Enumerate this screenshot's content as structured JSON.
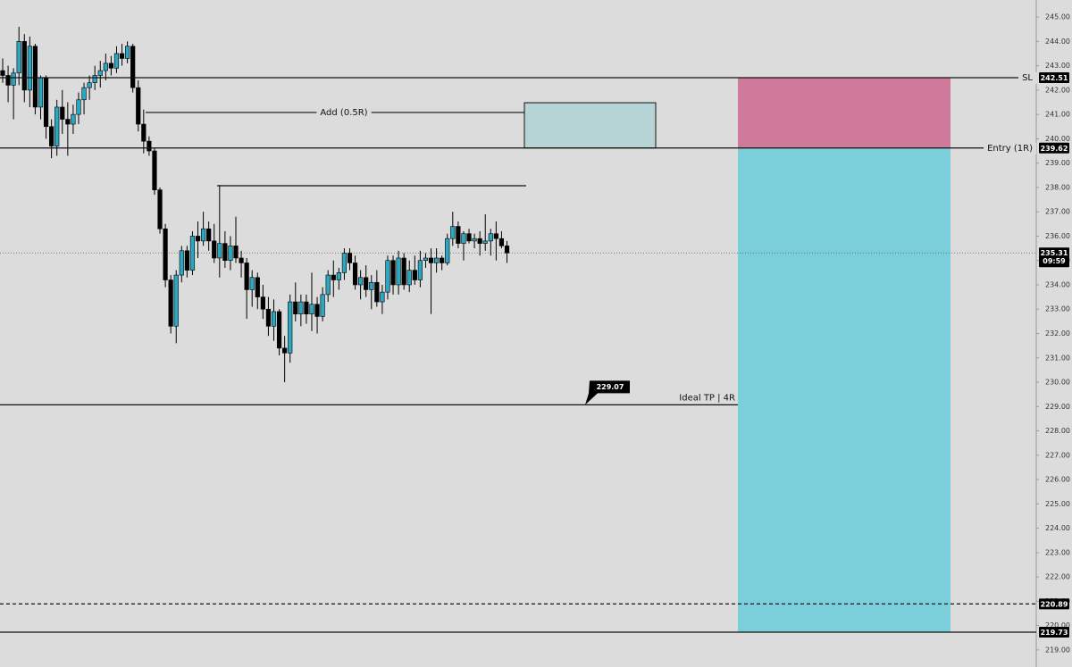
{
  "chart_data": {
    "type": "candlestick",
    "ylim": [
      218.3,
      245.7
    ],
    "yticks": [
      {
        "value": 219,
        "label": "219.00"
      },
      {
        "value": 220,
        "label": "220.00"
      },
      {
        "value": 221,
        "label": "221.00"
      },
      {
        "value": 222,
        "label": "222.00"
      },
      {
        "value": 223,
        "label": "223.00"
      },
      {
        "value": 224,
        "label": "224.00"
      },
      {
        "value": 225,
        "label": "225.00"
      },
      {
        "value": 226,
        "label": "226.00"
      },
      {
        "value": 227,
        "label": "227.00"
      },
      {
        "value": 228,
        "label": "228.00"
      },
      {
        "value": 229,
        "label": "229.00"
      },
      {
        "value": 230,
        "label": "230.00"
      },
      {
        "value": 231,
        "label": "231.00"
      },
      {
        "value": 232,
        "label": "232.00"
      },
      {
        "value": 233,
        "label": "233.00"
      },
      {
        "value": 234,
        "label": "234.00"
      },
      {
        "value": 235,
        "label": "235.00"
      },
      {
        "value": 236,
        "label": "236.00"
      },
      {
        "value": 237,
        "label": "237.00"
      },
      {
        "value": 238,
        "label": "238.00"
      },
      {
        "value": 239,
        "label": "239.00"
      },
      {
        "value": 240,
        "label": "240.00"
      },
      {
        "value": 241,
        "label": "241.00"
      },
      {
        "value": 242,
        "label": "242.00"
      },
      {
        "value": 243,
        "label": "243.00"
      },
      {
        "value": 244,
        "label": "244.00"
      },
      {
        "value": 245,
        "label": "245.00"
      }
    ],
    "up_color": "#2ba7c2",
    "down_color": "#000000",
    "ohlc": [
      [
        242.8,
        243.3,
        242.3,
        242.6
      ],
      [
        242.6,
        243.0,
        241.5,
        242.2
      ],
      [
        242.2,
        242.9,
        240.8,
        242.7
      ],
      [
        242.7,
        244.6,
        242.2,
        244.0
      ],
      [
        244.0,
        244.3,
        241.5,
        242.0
      ],
      [
        242.0,
        244.2,
        241.3,
        243.8
      ],
      [
        243.8,
        243.9,
        241.0,
        241.3
      ],
      [
        241.3,
        242.6,
        240.8,
        242.5
      ],
      [
        242.5,
        242.6,
        240.0,
        240.5
      ],
      [
        240.5,
        240.8,
        239.2,
        239.7
      ],
      [
        239.7,
        241.6,
        239.3,
        241.3
      ],
      [
        241.3,
        242.0,
        240.2,
        240.8
      ],
      [
        240.8,
        241.5,
        239.3,
        240.6
      ],
      [
        240.6,
        241.4,
        240.2,
        241.0
      ],
      [
        241.0,
        241.9,
        240.6,
        241.6
      ],
      [
        241.6,
        242.3,
        241.0,
        242.1
      ],
      [
        242.1,
        242.6,
        241.6,
        242.3
      ],
      [
        242.3,
        243.0,
        242.0,
        242.6
      ],
      [
        242.6,
        243.2,
        242.1,
        242.8
      ],
      [
        242.8,
        243.5,
        242.4,
        243.1
      ],
      [
        243.1,
        243.4,
        242.6,
        242.9
      ],
      [
        242.9,
        243.8,
        242.7,
        243.5
      ],
      [
        243.5,
        243.9,
        243.0,
        243.3
      ],
      [
        243.3,
        244.0,
        243.1,
        243.8
      ],
      [
        243.8,
        243.9,
        241.9,
        242.1
      ],
      [
        242.1,
        242.4,
        240.3,
        240.6
      ],
      [
        240.6,
        241.2,
        239.4,
        239.9
      ],
      [
        239.9,
        240.1,
        239.3,
        239.5
      ],
      [
        239.5,
        239.6,
        237.7,
        237.9
      ],
      [
        237.9,
        238.0,
        236.1,
        236.3
      ],
      [
        236.3,
        236.5,
        233.9,
        234.2
      ],
      [
        234.2,
        234.4,
        232.0,
        232.3
      ],
      [
        232.3,
        234.6,
        231.6,
        234.4
      ],
      [
        234.4,
        235.6,
        234.1,
        235.4
      ],
      [
        235.4,
        235.6,
        234.3,
        234.6
      ],
      [
        234.6,
        236.2,
        234.4,
        236.0
      ],
      [
        236.0,
        236.6,
        235.1,
        235.8
      ],
      [
        235.8,
        237.0,
        235.6,
        236.3
      ],
      [
        236.3,
        236.6,
        235.4,
        235.8
      ],
      [
        235.8,
        236.5,
        234.9,
        235.1
      ],
      [
        235.1,
        238.1,
        234.3,
        235.7
      ],
      [
        235.7,
        236.2,
        234.7,
        235.0
      ],
      [
        235.0,
        236.0,
        234.6,
        235.6
      ],
      [
        235.6,
        236.8,
        234.9,
        235.1
      ],
      [
        235.1,
        235.4,
        234.3,
        234.9
      ],
      [
        234.9,
        235.1,
        232.6,
        233.8
      ],
      [
        233.8,
        234.6,
        233.1,
        234.3
      ],
      [
        234.3,
        234.5,
        233.0,
        233.5
      ],
      [
        233.5,
        234.0,
        232.6,
        233.0
      ],
      [
        233.0,
        233.5,
        231.9,
        232.3
      ],
      [
        232.3,
        233.4,
        231.7,
        232.9
      ],
      [
        232.9,
        233.0,
        231.1,
        231.4
      ],
      [
        231.4,
        231.9,
        230.0,
        231.2
      ],
      [
        231.2,
        233.6,
        230.8,
        233.3
      ],
      [
        233.3,
        234.1,
        232.5,
        232.8
      ],
      [
        232.8,
        233.6,
        232.3,
        233.3
      ],
      [
        233.3,
        233.6,
        232.4,
        232.8
      ],
      [
        232.8,
        234.5,
        232.1,
        233.2
      ],
      [
        233.2,
        233.5,
        232.0,
        232.7
      ],
      [
        232.7,
        233.9,
        232.5,
        233.6
      ],
      [
        233.6,
        234.6,
        233.3,
        234.4
      ],
      [
        234.4,
        235.0,
        233.5,
        234.2
      ],
      [
        234.2,
        234.7,
        233.8,
        234.5
      ],
      [
        234.5,
        235.5,
        234.2,
        235.3
      ],
      [
        235.3,
        235.5,
        234.6,
        234.9
      ],
      [
        234.9,
        235.2,
        233.8,
        234.0
      ],
      [
        234.0,
        234.6,
        233.4,
        234.3
      ],
      [
        234.3,
        234.8,
        233.5,
        233.8
      ],
      [
        233.8,
        234.4,
        233.0,
        234.1
      ],
      [
        234.1,
        234.6,
        233.1,
        233.3
      ],
      [
        233.3,
        234.0,
        232.8,
        233.7
      ],
      [
        233.7,
        235.2,
        233.4,
        235.0
      ],
      [
        235.0,
        235.2,
        233.6,
        234.0
      ],
      [
        234.0,
        235.4,
        233.6,
        235.1
      ],
      [
        235.1,
        235.3,
        233.8,
        234.0
      ],
      [
        234.0,
        235.0,
        233.7,
        234.6
      ],
      [
        234.6,
        235.2,
        234.0,
        234.2
      ],
      [
        234.2,
        235.4,
        233.9,
        235.0
      ],
      [
        235.0,
        235.3,
        234.7,
        235.1
      ],
      [
        235.1,
        235.5,
        232.8,
        234.9
      ],
      [
        234.9,
        235.5,
        234.5,
        235.1
      ],
      [
        235.1,
        235.2,
        234.6,
        234.9
      ],
      [
        234.9,
        236.1,
        234.8,
        235.9
      ],
      [
        235.9,
        237.0,
        235.6,
        236.4
      ],
      [
        236.4,
        236.6,
        235.5,
        235.7
      ],
      [
        235.7,
        236.2,
        235.0,
        236.1
      ],
      [
        236.1,
        236.3,
        235.7,
        235.8
      ],
      [
        235.8,
        236.1,
        235.5,
        235.9
      ],
      [
        235.9,
        236.2,
        235.2,
        235.7
      ],
      [
        235.7,
        236.9,
        235.4,
        235.8
      ],
      [
        235.8,
        236.3,
        235.2,
        236.1
      ],
      [
        236.1,
        236.6,
        235.0,
        235.9
      ],
      [
        235.9,
        236.2,
        235.5,
        235.6
      ],
      [
        235.6,
        235.8,
        234.9,
        235.31
      ]
    ],
    "levels": [
      {
        "label": "SL",
        "value": 242.51,
        "badge": true
      },
      {
        "label": "Entry (1R)",
        "value": 239.62,
        "badge": true
      },
      {
        "label": "Ideal TP | 4R",
        "value": 229.07,
        "callout": true
      },
      {
        "value": 220.89,
        "badge": true,
        "dashed": true
      },
      {
        "value": 219.73,
        "badge": true
      },
      {
        "label": "Add (0.5R)",
        "value": 241.08
      },
      {
        "value": 238.07
      }
    ],
    "current_price": {
      "value": 235.31,
      "countdown": "09:59"
    },
    "add_box": {
      "top": 241.48,
      "color": "#b6d3d6"
    },
    "risk_color": "#d07a9b",
    "reward_color": "#7acfda"
  }
}
